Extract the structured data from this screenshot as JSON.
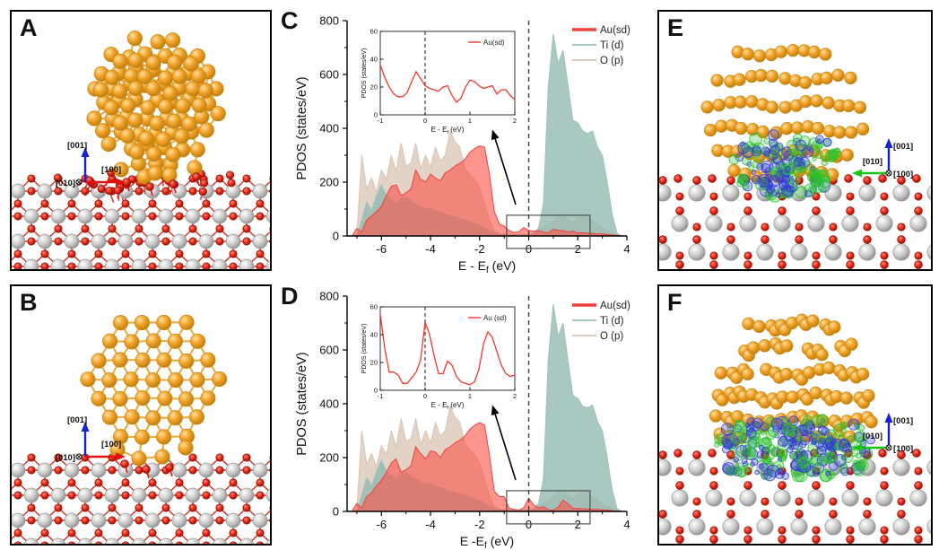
{
  "figure": {
    "background": "#ffffff"
  },
  "colors": {
    "panel_border": "#000000",
    "gold": "#f2a42c",
    "gold_bond": "#e8a838",
    "gold_edge": "#c8860e",
    "titanium_gray": "#c9c9c9",
    "oxygen_red": "#e32312",
    "iso_blue": "#2f3bd6",
    "iso_green": "#2cc22c",
    "axis_blue": "#1521d8",
    "axis_red": "#e31010",
    "axis_green": "#18c418",
    "au_curve": "#f4483c",
    "ti_curve": "#8fb8b0",
    "o_curve": "#d8c2b2",
    "fermi_dash": "#3d3d3d"
  },
  "panels": {
    "A": {
      "label": "A",
      "axes": {
        "up": "[001]",
        "right": "[100]",
        "into_page": "[010]"
      }
    },
    "B": {
      "label": "B",
      "axes": {
        "up": "[001]",
        "right": "[100]",
        "into_page": "[010]"
      }
    },
    "C": {
      "label": "C"
    },
    "D": {
      "label": "D"
    },
    "E": {
      "label": "E",
      "axes": {
        "up": "[001]",
        "left": "[010]",
        "into_page": "[100]"
      }
    },
    "F": {
      "label": "F",
      "axes": {
        "up": "[001]",
        "left": "[010]",
        "into_page": "[100]"
      }
    }
  },
  "chart_data": [
    {
      "panel": "C",
      "type": "area",
      "xlabel": {
        "pre": "E - E",
        "sub": "f",
        "post": " (eV)"
      },
      "ylabel": "PDOS (states/eV)",
      "xlim": [
        -7.4,
        4
      ],
      "ylim": [
        0,
        800
      ],
      "xticks": [
        -6,
        -4,
        -2,
        0,
        2,
        4
      ],
      "yticks": [
        0,
        200,
        400,
        600,
        800
      ],
      "fermi_x": 0,
      "x": [
        -7.2,
        -7.0,
        -6.8,
        -6.6,
        -6.4,
        -6.2,
        -6.0,
        -5.8,
        -5.6,
        -5.4,
        -5.2,
        -5.0,
        -4.8,
        -4.6,
        -4.4,
        -4.2,
        -4.0,
        -3.8,
        -3.6,
        -3.4,
        -3.2,
        -3.0,
        -2.8,
        -2.6,
        -2.4,
        -2.2,
        -2.0,
        -1.8,
        -1.6,
        -1.4,
        -1.2,
        -1.0,
        -0.8,
        -0.6,
        -0.4,
        -0.2,
        0.0,
        0.2,
        0.4,
        0.6,
        0.8,
        1.0,
        1.2,
        1.4,
        1.6,
        1.8,
        2.0,
        2.2,
        2.4,
        2.6,
        2.8,
        3.0,
        3.2,
        3.4,
        3.6,
        3.8,
        4.0
      ],
      "series": [
        {
          "name": "Au(sd)",
          "color": "#ef4040",
          "fill": "#fa564a",
          "fill_opacity": 0.62,
          "values": [
            0,
            28,
            15,
            60,
            75,
            90,
            110,
            150,
            185,
            190,
            150,
            160,
            175,
            245,
            210,
            200,
            230,
            215,
            205,
            235,
            245,
            260,
            270,
            285,
            310,
            325,
            335,
            330,
            230,
            90,
            45,
            36,
            20,
            13,
            16,
            31,
            21,
            18,
            20,
            14,
            12,
            25,
            21,
            20,
            15,
            18,
            11,
            12,
            10,
            10,
            8,
            8,
            6,
            4,
            2,
            0,
            0
          ]
        },
        {
          "name": "Ti (d)",
          "color": "#9cc2ba",
          "fill": "#8fb8b0",
          "fill_opacity": 0.78,
          "values": [
            0,
            0,
            60,
            125,
            95,
            150,
            190,
            150,
            135,
            120,
            140,
            145,
            130,
            120,
            110,
            100,
            105,
            95,
            90,
            80,
            75,
            70,
            65,
            60,
            55,
            45,
            40,
            30,
            20,
            12,
            8,
            6,
            5,
            4,
            4,
            4,
            5,
            10,
            30,
            120,
            560,
            750,
            640,
            690,
            560,
            430,
            420,
            390,
            380,
            390,
            330,
            300,
            200,
            80,
            10,
            0,
            0
          ]
        },
        {
          "name": "O (p)",
          "color": "#d9c3b3",
          "fill": "#d8c2b2",
          "fill_opacity": 0.72,
          "values": [
            0,
            5,
            300,
            175,
            215,
            165,
            245,
            210,
            300,
            240,
            345,
            260,
            270,
            345,
            250,
            300,
            255,
            330,
            280,
            300,
            390,
            350,
            330,
            250,
            230,
            210,
            180,
            120,
            60,
            20,
            8,
            5,
            4,
            3,
            3,
            4,
            5,
            10,
            20,
            30,
            40,
            55,
            75,
            80,
            60,
            50,
            65,
            80,
            70,
            55,
            45,
            30,
            20,
            10,
            5,
            0,
            0
          ]
        }
      ],
      "inset": {
        "xlim": [
          -1,
          2
        ],
        "ylim": [
          0,
          60
        ],
        "xticks": [
          -1,
          0,
          1,
          2
        ],
        "yticks": [
          0,
          20,
          40,
          60
        ],
        "xlabel": {
          "pre": "E - E",
          "sub": "f",
          "post": " (eV)"
        },
        "ylabel": "PDOS (states/eV)",
        "legend": "Au(sd)",
        "x": [
          -1.0,
          -0.9,
          -0.8,
          -0.7,
          -0.6,
          -0.5,
          -0.4,
          -0.3,
          -0.2,
          -0.1,
          0.0,
          0.1,
          0.2,
          0.3,
          0.4,
          0.5,
          0.6,
          0.7,
          0.8,
          0.9,
          1.0,
          1.1,
          1.2,
          1.3,
          1.4,
          1.5,
          1.6,
          1.7,
          1.8,
          1.9,
          2.0
        ],
        "values": [
          36,
          27,
          20,
          15,
          13,
          13,
          16,
          24,
          31,
          26,
          21,
          19,
          18,
          17,
          20,
          21,
          14,
          9,
          12,
          20,
          25,
          24,
          21,
          19,
          20,
          21,
          15,
          18,
          18,
          14,
          11
        ]
      }
    },
    {
      "panel": "D",
      "type": "area",
      "xlabel": {
        "pre": "E -E",
        "sub": "f",
        "post": " (eV)"
      },
      "ylabel": "PDOS (states/eV)",
      "xlim": [
        -7.4,
        4
      ],
      "ylim": [
        0,
        800
      ],
      "xticks": [
        -6,
        -4,
        -2,
        0,
        2,
        4
      ],
      "yticks": [
        0,
        200,
        400,
        600,
        800
      ],
      "fermi_x": 0,
      "x": [
        -7.2,
        -7.0,
        -6.8,
        -6.6,
        -6.4,
        -6.2,
        -6.0,
        -5.8,
        -5.6,
        -5.4,
        -5.2,
        -5.0,
        -4.8,
        -4.6,
        -4.4,
        -4.2,
        -4.0,
        -3.8,
        -3.6,
        -3.4,
        -3.2,
        -3.0,
        -2.8,
        -2.6,
        -2.4,
        -2.2,
        -2.0,
        -1.8,
        -1.6,
        -1.4,
        -1.2,
        -1.0,
        -0.8,
        -0.6,
        -0.4,
        -0.2,
        0.0,
        0.2,
        0.4,
        0.6,
        0.8,
        1.0,
        1.2,
        1.4,
        1.6,
        1.8,
        2.0,
        2.2,
        2.4,
        2.6,
        2.8,
        3.0,
        3.2,
        3.4,
        3.6,
        3.8,
        4.0
      ],
      "series": [
        {
          "name": "Au(sd)",
          "color": "#ef4040",
          "fill": "#fa564a",
          "fill_opacity": 0.62,
          "values": [
            0,
            30,
            12,
            55,
            70,
            95,
            115,
            145,
            180,
            195,
            145,
            155,
            170,
            240,
            215,
            195,
            225,
            220,
            200,
            230,
            240,
            255,
            265,
            280,
            305,
            320,
            330,
            320,
            210,
            75,
            55,
            55,
            12,
            8,
            5,
            14,
            49,
            25,
            12,
            18,
            6,
            4,
            15,
            42,
            28,
            12,
            11,
            10,
            9,
            8,
            7,
            6,
            5,
            3,
            1,
            0,
            0
          ]
        },
        {
          "name": "Ti (d)",
          "color": "#9cc2ba",
          "fill": "#8fb8b0",
          "fill_opacity": 0.78,
          "values": [
            0,
            0,
            60,
            125,
            95,
            150,
            190,
            150,
            135,
            120,
            140,
            145,
            130,
            120,
            110,
            100,
            105,
            95,
            90,
            80,
            75,
            70,
            65,
            60,
            55,
            45,
            40,
            30,
            20,
            12,
            8,
            6,
            5,
            4,
            4,
            4,
            5,
            10,
            30,
            120,
            570,
            770,
            650,
            700,
            560,
            430,
            420,
            390,
            385,
            395,
            335,
            300,
            200,
            80,
            10,
            0,
            0
          ]
        },
        {
          "name": "O (p)",
          "color": "#d9c3b3",
          "fill": "#d8c2b2",
          "fill_opacity": 0.72,
          "values": [
            0,
            5,
            300,
            175,
            215,
            165,
            245,
            210,
            300,
            240,
            345,
            260,
            270,
            345,
            250,
            300,
            255,
            330,
            280,
            300,
            390,
            350,
            330,
            250,
            230,
            210,
            180,
            120,
            60,
            20,
            8,
            5,
            4,
            3,
            3,
            4,
            5,
            10,
            20,
            30,
            40,
            55,
            75,
            80,
            60,
            50,
            65,
            80,
            70,
            55,
            45,
            30,
            20,
            10,
            5,
            0,
            0
          ]
        }
      ],
      "inset": {
        "xlim": [
          -1,
          2
        ],
        "ylim": [
          0,
          60
        ],
        "xticks": [
          -1,
          0,
          1,
          2
        ],
        "yticks": [
          0,
          20,
          40,
          60
        ],
        "xlabel": {
          "pre": "E - E",
          "sub": "f",
          "post": " (eV)"
        },
        "ylabel": "PDOS (states/eV)",
        "legend": "Au (sd)",
        "x": [
          -1.0,
          -0.9,
          -0.8,
          -0.7,
          -0.6,
          -0.5,
          -0.4,
          -0.3,
          -0.2,
          -0.1,
          0.0,
          0.1,
          0.2,
          0.3,
          0.4,
          0.5,
          0.6,
          0.7,
          0.8,
          0.9,
          1.0,
          1.1,
          1.2,
          1.3,
          1.4,
          1.5,
          1.6,
          1.7,
          1.8,
          1.9,
          2.0
        ],
        "values": [
          55,
          30,
          13,
          13,
          11,
          5,
          5,
          9,
          13,
          22,
          49,
          40,
          25,
          12,
          12,
          21,
          18,
          10,
          6,
          5,
          4,
          6,
          15,
          33,
          42,
          38,
          28,
          18,
          12,
          10,
          11
        ]
      }
    }
  ]
}
